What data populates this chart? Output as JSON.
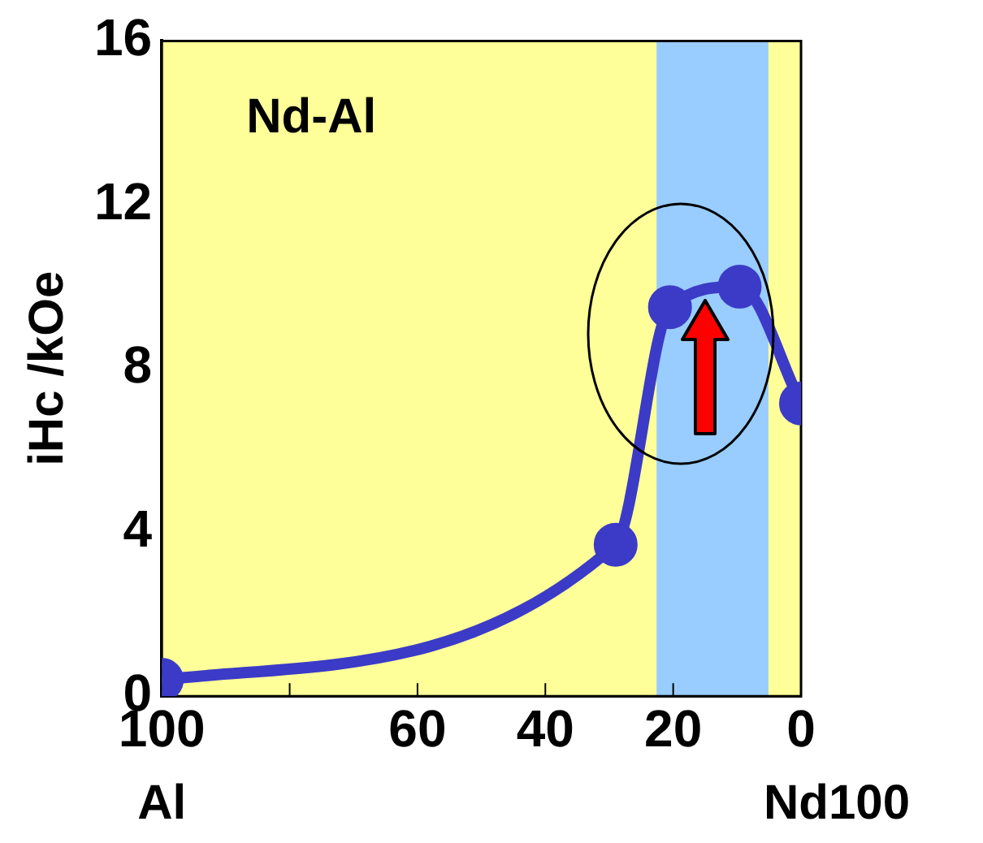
{
  "chart_data": {
    "type": "line",
    "ylabel": "iHc /kOe",
    "x": [
      100,
      29,
      20.5,
      9.6,
      0
    ],
    "series": [
      {
        "color": "#3b3bc8",
        "values": [
          0.4,
          3.7,
          9.5,
          10.0,
          7.15
        ]
      }
    ],
    "xlim": [
      100,
      0
    ],
    "xticks": [
      100,
      {
        "value": 80,
        "label": null
      },
      60,
      40,
      20,
      0
    ],
    "ylim": [
      0,
      16
    ],
    "yticks": [
      0,
      4,
      8,
      12,
      16
    ],
    "bands": [
      {
        "axis": "x",
        "from": 100,
        "to": 0,
        "color": "#ffff99"
      },
      {
        "axis": "x",
        "from": 22.6,
        "to": 5.1,
        "color": "#99ccff"
      }
    ],
    "annotations": [
      "Nd-Al",
      "Al",
      "Nd100"
    ],
    "marker": "circle",
    "line_style": "solid",
    "legend": false
  }
}
